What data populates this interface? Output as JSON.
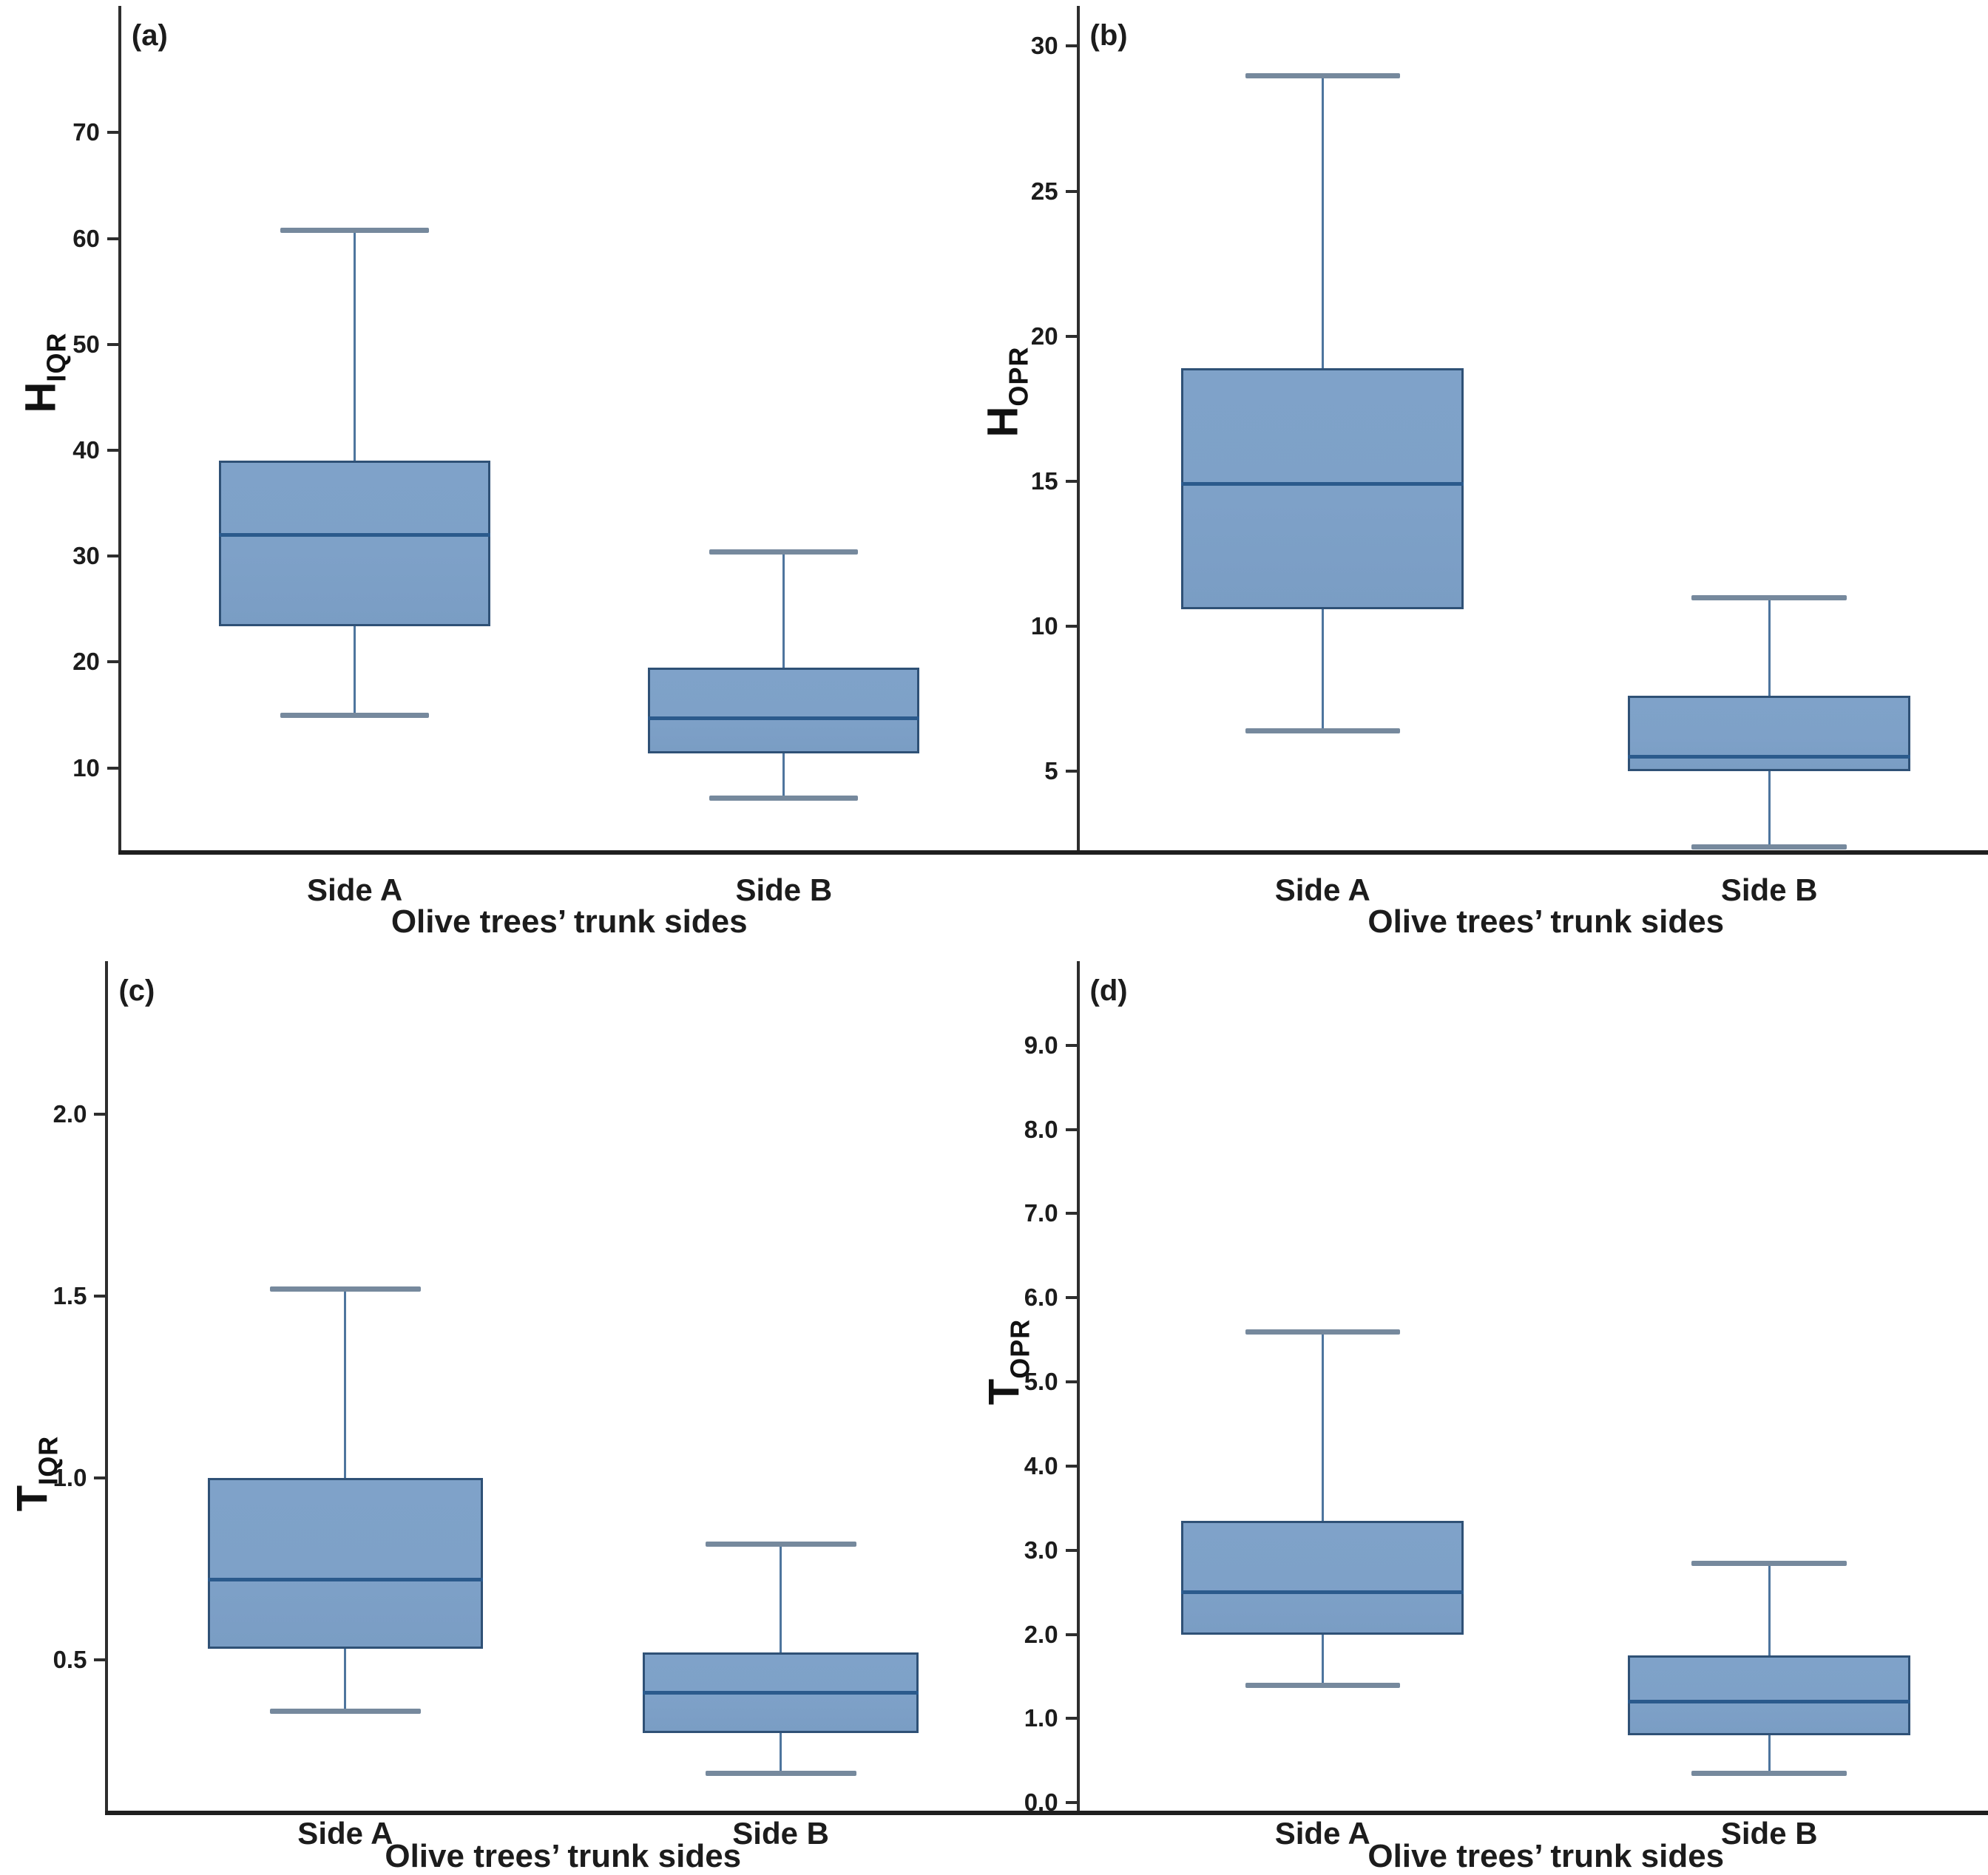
{
  "figure": {
    "background": "#ffffff",
    "description": "Four box plots comparing olive trees' trunk sides A and B",
    "x_axis_title": "Olive trees’ trunk sides",
    "categories": [
      "Side A",
      "Side B"
    ]
  },
  "styles": {
    "box_fill": "#7ea1c8",
    "box_border": "#2f5176",
    "median_color": "#2b5a8c",
    "whisker_color": "#4e759e",
    "cap_color": "#76899d",
    "axis_color": "#262626",
    "text_color": "#1c1c1c"
  },
  "chart_data": [
    {
      "type": "box",
      "panel_label": "(a)",
      "ylabel_main": "H",
      "ylabel_sub": "IQR",
      "xlabel": "Olive trees’ trunk sides",
      "categories": [
        "Side A",
        "Side B"
      ],
      "yticks": [
        10,
        20,
        30,
        40,
        50,
        60,
        70
      ],
      "ytick_labels": [
        "10",
        "20",
        "30",
        "40",
        "50",
        "60",
        "70"
      ],
      "ylim": [
        2,
        82
      ],
      "grid": false,
      "series": [
        {
          "name": "Side A",
          "min": 15.0,
          "q1": 23.4,
          "median": 32.0,
          "q3": 39.0,
          "max": 60.8
        },
        {
          "name": "Side B",
          "min": 7.2,
          "q1": 11.4,
          "median": 14.7,
          "q3": 19.5,
          "max": 30.4
        }
      ]
    },
    {
      "type": "box",
      "panel_label": "(b)",
      "ylabel_main": "H",
      "ylabel_sub": "OPR",
      "xlabel": "Olive trees’ trunk sides",
      "categories": [
        "Side A",
        "Side B"
      ],
      "yticks": [
        5,
        10,
        15,
        20,
        25,
        30
      ],
      "ytick_labels": [
        "5",
        "10",
        "15",
        "20",
        "25",
        "30"
      ],
      "ylim": [
        2.2,
        31.4
      ],
      "grid": false,
      "series": [
        {
          "name": "Side A",
          "min": 6.4,
          "q1": 10.6,
          "median": 14.9,
          "q3": 18.9,
          "max": 29.0
        },
        {
          "name": "Side B",
          "min": 2.4,
          "q1": 5.0,
          "median": 5.5,
          "q3": 7.6,
          "max": 11.0
        }
      ]
    },
    {
      "type": "box",
      "panel_label": "(c)",
      "ylabel_main": "T",
      "ylabel_sub": "IQR",
      "xlabel": "Olive trees’ trunk sides",
      "categories": [
        "Side A",
        "Side B"
      ],
      "yticks": [
        0.5,
        1.0,
        1.5,
        2.0
      ],
      "ytick_labels": [
        "0.5",
        "1.0",
        "1.5",
        "2.0"
      ],
      "ylim": [
        0.08,
        2.42
      ],
      "grid": false,
      "series": [
        {
          "name": "Side A",
          "min": 0.36,
          "q1": 0.53,
          "median": 0.72,
          "q3": 1.0,
          "max": 1.52
        },
        {
          "name": "Side B",
          "min": 0.19,
          "q1": 0.3,
          "median": 0.41,
          "q3": 0.52,
          "max": 0.82
        }
      ]
    },
    {
      "type": "box",
      "panel_label": "(d)",
      "ylabel_main": "T",
      "ylabel_sub": "OPR",
      "xlabel": "Olive trees’ trunk sides",
      "categories": [
        "Side A",
        "Side B"
      ],
      "yticks": [
        0.0,
        1.0,
        2.0,
        3.0,
        4.0,
        5.0,
        6.0,
        7.0,
        8.0,
        9.0
      ],
      "ytick_labels": [
        "0.0",
        "1.0",
        "2.0",
        "3.0",
        "4.0",
        "5.0",
        "6.0",
        "7.0",
        "8.0",
        "9.0"
      ],
      "ylim": [
        -0.12,
        10.0
      ],
      "grid": false,
      "series": [
        {
          "name": "Side A",
          "min": 1.4,
          "q1": 2.0,
          "median": 2.5,
          "q3": 3.35,
          "max": 5.6
        },
        {
          "name": "Side B",
          "min": 0.35,
          "q1": 0.8,
          "median": 1.2,
          "q3": 1.75,
          "max": 2.85
        }
      ]
    }
  ]
}
